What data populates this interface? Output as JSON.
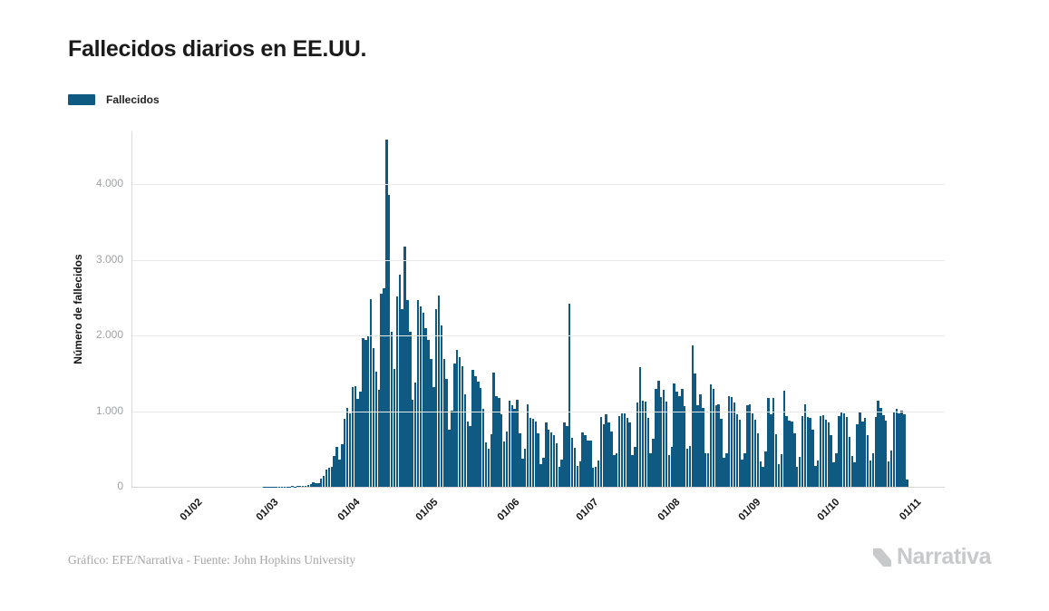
{
  "title": "Fallecidos diarios en EE.UU.",
  "legend": {
    "label": "Fallecidos",
    "color": "#0E5A82"
  },
  "y_axis": {
    "title": "Número de fallecidos",
    "tick_labels": [
      "0",
      "1.000",
      "2.000",
      "3.000",
      "4.000"
    ]
  },
  "x_axis": {
    "tick_labels": [
      "01/02",
      "01/03",
      "01/04",
      "01/05",
      "01/06",
      "01/07",
      "01/08",
      "01/09",
      "01/10",
      "01/11"
    ]
  },
  "footer": {
    "credit": "Gráfico: EFE/Narrativa - Fuente: John Hopkins University",
    "brand": "Narrativa"
  },
  "chart_data": {
    "type": "bar",
    "title": "Fallecidos diarios en EE.UU.",
    "xlabel": "",
    "ylabel": "Número de fallecidos",
    "ylim": [
      0,
      4700
    ],
    "grid": "horizontal",
    "legend_position": "top-left",
    "background": "#ffffff",
    "gridline_color": "#e9e9e9",
    "start_date": "2020-01-22",
    "end_date": "2020-11-01",
    "x_tick_labels": [
      "01/02",
      "01/03",
      "01/04",
      "01/05",
      "01/06",
      "01/07",
      "01/08",
      "01/09",
      "01/10",
      "01/11"
    ],
    "x_tick_day_indices": [
      10,
      39,
      70,
      100,
      131,
      161,
      192,
      223,
      253,
      284
    ],
    "y_tick_values": [
      0,
      1000,
      2000,
      3000,
      4000
    ],
    "y_tick_labels": [
      "0",
      "1.000",
      "2.000",
      "3.000",
      "4.000"
    ],
    "series": [
      {
        "name": "Fallecidos",
        "color": "#0E5A82",
        "values": [
          0,
          0,
          0,
          0,
          0,
          0,
          0,
          0,
          0,
          0,
          0,
          0,
          0,
          0,
          0,
          0,
          0,
          0,
          0,
          0,
          0,
          0,
          0,
          0,
          0,
          0,
          0,
          0,
          0,
          0,
          0,
          0,
          0,
          0,
          0,
          0,
          0,
          0,
          1,
          1,
          5,
          2,
          4,
          2,
          3,
          4,
          3,
          4,
          4,
          8,
          3,
          8,
          9,
          11,
          18,
          23,
          41,
          57,
          49,
          46,
          111,
          140,
          225,
          247,
          268,
          411,
          525,
          363,
          558,
          895,
          1049,
          968,
          1321,
          1331,
          1165,
          1255,
          1970,
          1940,
          2000,
          2480,
          1830,
          1528,
          1285,
          2555,
          2620,
          4591,
          3857,
          2050,
          1561,
          2520,
          2804,
          2350,
          3179,
          2474,
          2056,
          1154,
          1384,
          2470,
          2390,
          2300,
          2100,
          1948,
          1691,
          1324,
          2350,
          2528,
          2129,
          1687,
          1422,
          750,
          1008,
          1630,
          1813,
          1715,
          1595,
          1218,
          865,
          808,
          1552,
          1461,
          1390,
          1305,
          1035,
          592,
          505,
          693,
          1505,
          1199,
          1175,
          960,
          605,
          730,
          1134,
          1083,
          1036,
          1155,
          709,
          373,
          498,
          1093,
          906,
          902,
          868,
          710,
          302,
          389,
          851,
          759,
          722,
          684,
          577,
          267,
          361,
          850,
          798,
          2425,
          648,
          511,
          271,
          335,
          724,
          685,
          613,
          614,
          254,
          263,
          351,
          921,
          831,
          963,
          849,
          737,
          420,
          447,
          935,
          974,
          967,
          908,
          853,
          420,
          531,
          1116,
          1585,
          1140,
          1130,
          912,
          445,
          636,
          1300,
          1403,
          1187,
          1282,
          1133,
          415,
          532,
          1362,
          1262,
          1203,
          1290,
          1064,
          508,
          541,
          1867,
          1504,
          1076,
          1222,
          1049,
          442,
          439,
          1358,
          1293,
          1074,
          1096,
          901,
          379,
          446,
          1205,
          1184,
          1118,
          965,
          882,
          360,
          448,
          1083,
          1090,
          967,
          889,
          711,
          341,
          268,
          462,
          1177,
          961,
          1170,
          690,
          304,
          434,
          1276,
          935,
          873,
          863,
          704,
          262,
          392,
          930,
          1093,
          918,
          907,
          759,
          273,
          344,
          932,
          943,
          883,
          848,
          684,
          327,
          444,
          940,
          990,
          968,
          925,
          655,
          403,
          320,
          824,
          988,
          865,
          910,
          680,
          342,
          445,
          928,
          1135,
          1040,
          950,
          870,
          340,
          477,
          985,
          1030,
          971,
          1004,
          955,
          100
        ]
      }
    ]
  }
}
